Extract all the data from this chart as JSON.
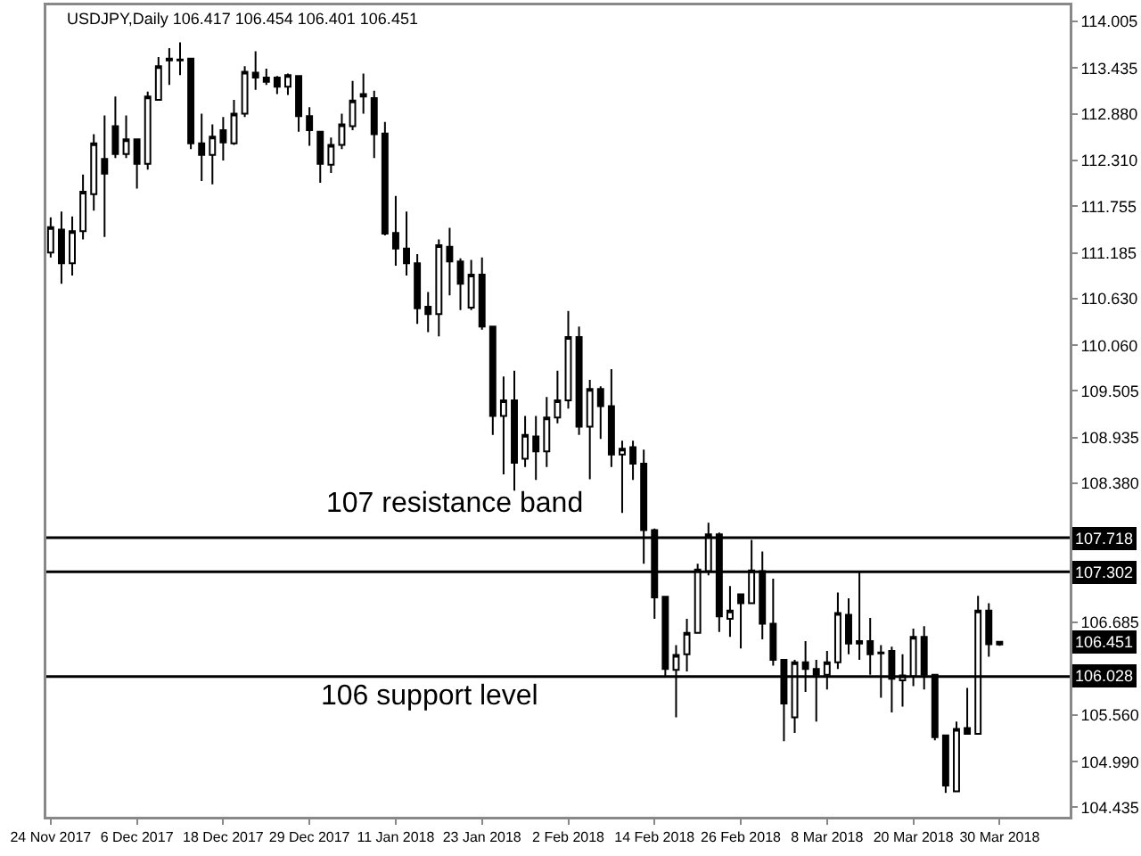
{
  "chart_data": {
    "type": "candlestick",
    "title": "USDJPY,Daily 106.417 106.454 106.401 106.451",
    "color": "#000000",
    "categories": [
      "24 Nov 2017",
      null,
      null,
      null,
      null,
      null,
      null,
      null,
      "6 Dec 2017",
      null,
      null,
      null,
      null,
      null,
      null,
      null,
      "18 Dec 2017",
      null,
      null,
      null,
      null,
      null,
      null,
      null,
      "29 Dec 2017",
      null,
      null,
      null,
      null,
      null,
      null,
      null,
      "11 Jan 2018",
      null,
      null,
      null,
      null,
      null,
      null,
      null,
      "23 Jan 2018",
      null,
      null,
      null,
      null,
      null,
      null,
      null,
      "2 Feb 2018",
      null,
      null,
      null,
      null,
      null,
      null,
      null,
      "14 Feb 2018",
      null,
      null,
      null,
      null,
      null,
      null,
      null,
      "26 Feb 2018",
      null,
      null,
      null,
      null,
      null,
      null,
      null,
      "8 Mar 2018",
      null,
      null,
      null,
      null,
      null,
      null,
      null,
      "20 Mar 2018",
      null,
      null,
      null,
      null,
      null,
      null,
      null,
      "30 Mar 2018"
    ],
    "ohlc": [
      [
        111.19,
        111.62,
        111.13,
        111.5
      ],
      [
        111.47,
        111.69,
        110.81,
        111.06
      ],
      [
        111.06,
        111.63,
        110.91,
        111.45
      ],
      [
        111.45,
        112.14,
        111.35,
        111.93
      ],
      [
        111.9,
        112.63,
        111.7,
        112.52
      ],
      [
        112.33,
        112.86,
        111.38,
        112.15
      ],
      [
        112.73,
        113.09,
        112.34,
        112.39
      ],
      [
        112.39,
        112.86,
        112.34,
        112.57
      ],
      [
        112.57,
        112.57,
        111.97,
        112.27
      ],
      [
        112.27,
        113.15,
        112.2,
        113.09
      ],
      [
        113.05,
        113.57,
        113.05,
        113.46
      ],
      [
        113.53,
        113.68,
        113.23,
        113.55
      ],
      [
        113.54,
        113.75,
        113.35,
        113.53
      ],
      [
        113.55,
        113.55,
        112.45,
        112.52
      ],
      [
        112.52,
        112.88,
        112.06,
        112.38
      ],
      [
        112.38,
        112.75,
        112.02,
        112.6
      ],
      [
        112.68,
        112.84,
        112.31,
        112.53
      ],
      [
        112.52,
        113.05,
        112.5,
        112.88
      ],
      [
        112.88,
        113.46,
        112.84,
        113.39
      ],
      [
        113.38,
        113.64,
        113.17,
        113.32
      ],
      [
        113.32,
        113.43,
        113.23,
        113.27
      ],
      [
        113.32,
        113.34,
        113.12,
        113.21
      ],
      [
        113.21,
        113.37,
        113.11,
        113.35
      ],
      [
        113.34,
        113.34,
        112.66,
        112.85
      ],
      [
        112.85,
        112.96,
        112.49,
        112.68
      ],
      [
        112.66,
        112.66,
        112.04,
        112.27
      ],
      [
        112.26,
        112.59,
        112.16,
        112.5
      ],
      [
        112.5,
        112.88,
        112.45,
        112.75
      ],
      [
        112.73,
        113.28,
        112.68,
        113.04
      ],
      [
        113.12,
        113.37,
        112.88,
        113.09
      ],
      [
        113.07,
        113.16,
        112.34,
        112.63
      ],
      [
        112.64,
        112.78,
        111.4,
        111.42
      ],
      [
        111.43,
        111.88,
        111.03,
        111.24
      ],
      [
        111.24,
        111.69,
        110.91,
        111.06
      ],
      [
        111.06,
        111.17,
        110.32,
        110.51
      ],
      [
        110.53,
        110.71,
        110.22,
        110.44
      ],
      [
        110.44,
        111.35,
        110.17,
        111.28
      ],
      [
        111.26,
        111.49,
        110.67,
        111.08
      ],
      [
        111.08,
        111.12,
        110.49,
        110.81
      ],
      [
        110.52,
        111.1,
        110.49,
        110.92
      ],
      [
        110.92,
        111.13,
        110.25,
        110.29
      ],
      [
        110.29,
        110.29,
        108.97,
        109.2
      ],
      [
        109.2,
        109.68,
        108.49,
        109.39
      ],
      [
        109.39,
        109.75,
        108.29,
        108.63
      ],
      [
        108.68,
        109.2,
        108.58,
        108.97
      ],
      [
        108.95,
        109.2,
        108.42,
        108.77
      ],
      [
        108.77,
        109.43,
        108.58,
        109.18
      ],
      [
        109.18,
        109.75,
        109.11,
        109.39
      ],
      [
        109.39,
        110.48,
        109.29,
        110.16
      ],
      [
        110.16,
        110.29,
        108.97,
        109.07
      ],
      [
        109.07,
        109.64,
        108.43,
        109.53
      ],
      [
        109.53,
        109.56,
        108.92,
        109.32
      ],
      [
        109.32,
        109.77,
        108.58,
        108.73
      ],
      [
        108.73,
        108.9,
        108.02,
        108.8
      ],
      [
        108.82,
        108.9,
        108.42,
        108.62
      ],
      [
        108.62,
        108.79,
        107.4,
        107.81
      ],
      [
        107.81,
        107.83,
        106.73,
        106.99
      ],
      [
        107.0,
        107.01,
        106.02,
        106.12
      ],
      [
        106.11,
        106.41,
        105.53,
        106.29
      ],
      [
        106.3,
        106.73,
        106.09,
        106.56
      ],
      [
        106.56,
        107.4,
        106.55,
        107.33
      ],
      [
        107.31,
        107.9,
        107.26,
        107.76
      ],
      [
        107.76,
        107.78,
        106.57,
        106.76
      ],
      [
        106.73,
        107.13,
        106.51,
        106.83
      ],
      [
        107.03,
        107.03,
        106.37,
        106.92
      ],
      [
        106.92,
        107.69,
        106.92,
        107.32
      ],
      [
        107.31,
        107.55,
        106.48,
        106.67
      ],
      [
        106.67,
        107.22,
        106.16,
        106.23
      ],
      [
        106.23,
        106.23,
        105.24,
        105.7
      ],
      [
        105.53,
        106.23,
        105.34,
        106.2
      ],
      [
        106.2,
        106.46,
        105.84,
        106.12
      ],
      [
        106.12,
        106.23,
        105.48,
        106.05
      ],
      [
        106.05,
        106.34,
        105.87,
        106.2
      ],
      [
        106.2,
        107.05,
        106.12,
        106.8
      ],
      [
        106.78,
        106.98,
        106.3,
        106.43
      ],
      [
        106.46,
        107.3,
        106.23,
        106.43
      ],
      [
        106.46,
        106.74,
        106.05,
        106.3
      ],
      [
        106.32,
        106.41,
        105.77,
        106.31
      ],
      [
        106.34,
        106.39,
        105.59,
        106.0
      ],
      [
        105.98,
        106.3,
        105.66,
        106.04
      ],
      [
        106.03,
        106.61,
        105.91,
        106.51
      ],
      [
        106.51,
        106.64,
        105.87,
        106.05
      ],
      [
        106.05,
        106.05,
        105.25,
        105.29
      ],
      [
        105.31,
        105.32,
        104.61,
        104.7
      ],
      [
        104.63,
        105.48,
        104.62,
        105.39
      ],
      [
        105.4,
        105.89,
        105.32,
        105.33
      ],
      [
        105.33,
        107.01,
        105.32,
        106.83
      ],
      [
        106.83,
        106.92,
        106.27,
        106.42
      ],
      [
        106.417,
        106.454,
        106.401,
        106.451
      ]
    ],
    "ylim": [
      104.32,
      114.2
    ],
    "yticks": [
      {
        "value": 114.005,
        "label": "114.005"
      },
      {
        "value": 113.435,
        "label": "113.435"
      },
      {
        "value": 112.88,
        "label": "112.880"
      },
      {
        "value": 112.31,
        "label": "112.310"
      },
      {
        "value": 111.755,
        "label": "111.755"
      },
      {
        "value": 111.185,
        "label": "111.185"
      },
      {
        "value": 110.63,
        "label": "110.630"
      },
      {
        "value": 110.06,
        "label": "110.060"
      },
      {
        "value": 109.505,
        "label": "109.505"
      },
      {
        "value": 108.935,
        "label": "108.935"
      },
      {
        "value": 108.38,
        "label": "108.380"
      },
      {
        "value": 106.685,
        "label": "106.685"
      },
      {
        "value": 105.56,
        "label": "105.560"
      },
      {
        "value": 104.99,
        "label": "104.990"
      },
      {
        "value": 104.435,
        "label": "104.435"
      }
    ],
    "ref_lines": [
      {
        "axis": "y",
        "value": 107.718,
        "label": "107.718",
        "color": "#000000"
      },
      {
        "axis": "y",
        "value": 107.302,
        "label": "107.302",
        "color": "#000000"
      },
      {
        "axis": "y",
        "value": 106.028,
        "label": "106.028",
        "color": "#000000"
      }
    ],
    "annotations": [
      "107 resistance band",
      "106 support level",
      "106.451"
    ],
    "grid": false,
    "legend": false
  }
}
